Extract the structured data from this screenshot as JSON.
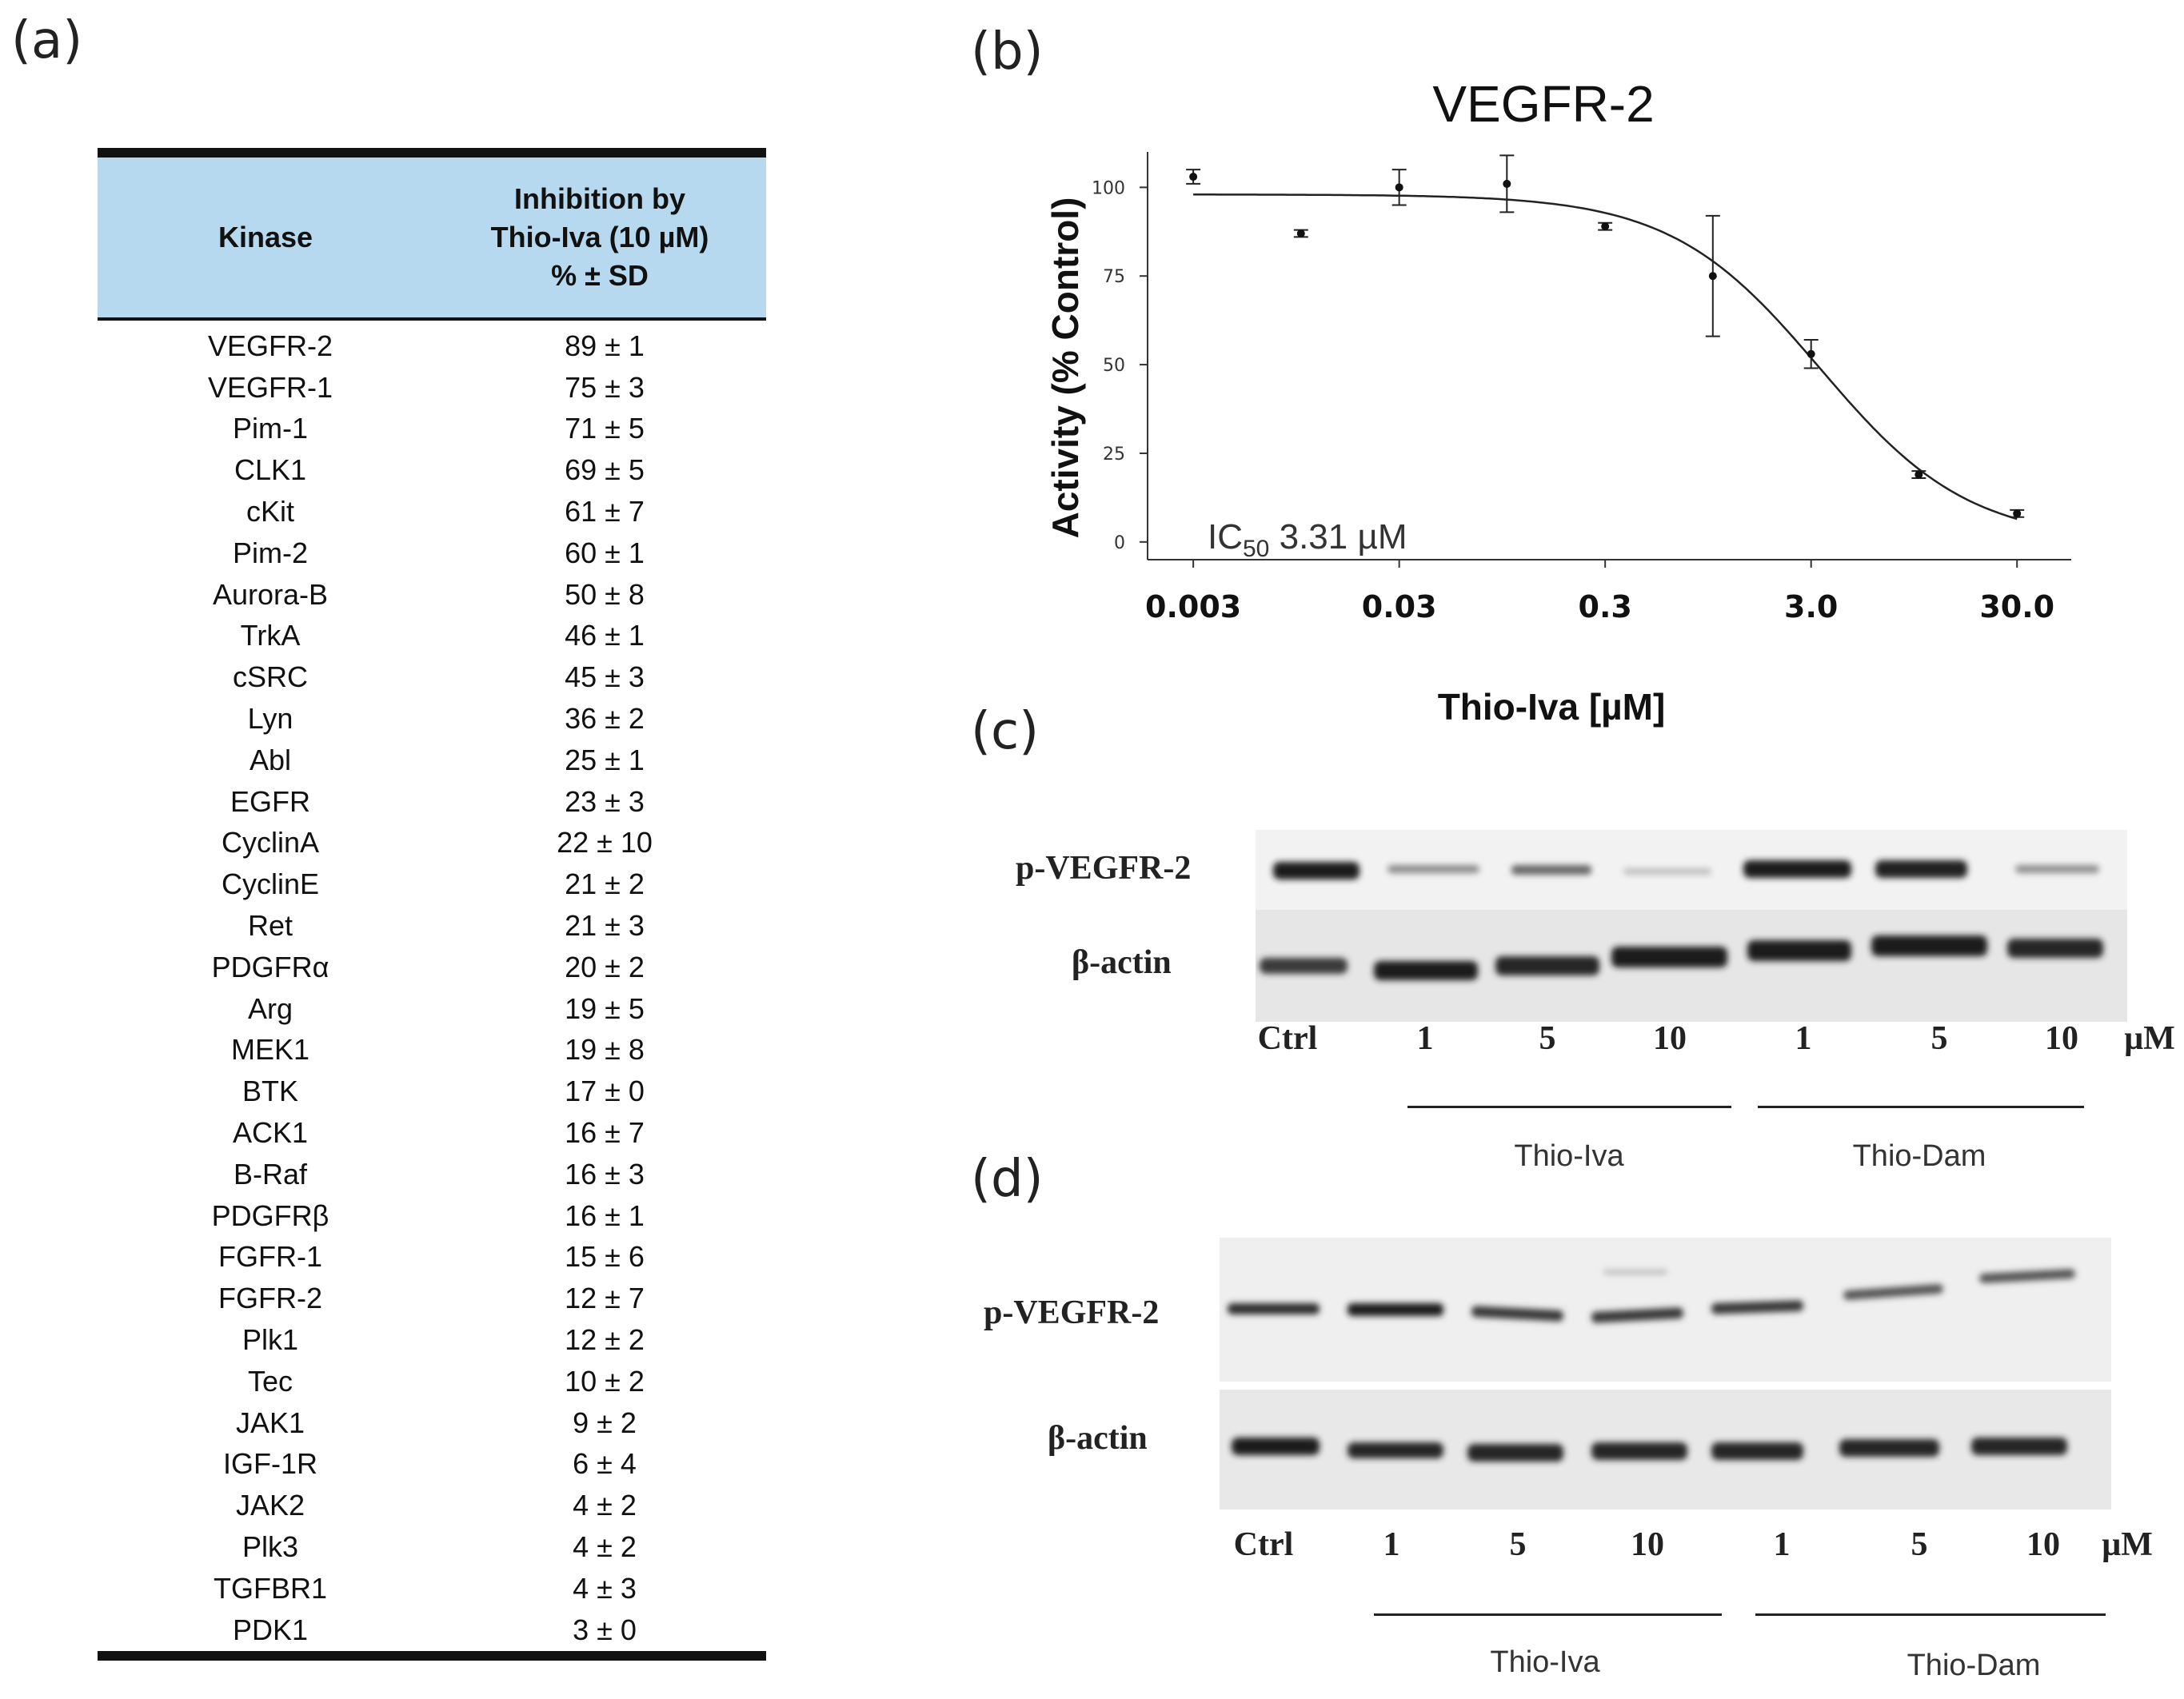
{
  "panels": {
    "a": "(a)",
    "b": "(b)",
    "c": "(c)",
    "d": "(d)"
  },
  "table": {
    "header_kinase": "Kinase",
    "header_inhibition": [
      "Inhibition by",
      "Thio-Iva (10 µM)",
      "% ± SD"
    ],
    "rows": [
      {
        "kinase": "VEGFR-2",
        "value": "89 ± 1"
      },
      {
        "kinase": "VEGFR-1",
        "value": "75 ± 3"
      },
      {
        "kinase": "Pim-1",
        "value": "71 ± 5"
      },
      {
        "kinase": "CLK1",
        "value": "69 ± 5"
      },
      {
        "kinase": "cKit",
        "value": "61 ± 7"
      },
      {
        "kinase": "Pim-2",
        "value": "60 ± 1"
      },
      {
        "kinase": "Aurora-B",
        "value": "50 ± 8"
      },
      {
        "kinase": "TrkA",
        "value": "46 ± 1"
      },
      {
        "kinase": "cSRC",
        "value": "45 ± 3"
      },
      {
        "kinase": "Lyn",
        "value": "36 ± 2"
      },
      {
        "kinase": "Abl",
        "value": "25 ± 1"
      },
      {
        "kinase": "EGFR",
        "value": "23 ± 3"
      },
      {
        "kinase": "CyclinA",
        "value": "22 ± 10"
      },
      {
        "kinase": "CyclinE",
        "value": "21 ± 2"
      },
      {
        "kinase": "Ret",
        "value": "21 ± 3"
      },
      {
        "kinase": "PDGFRα",
        "value": "20 ± 2"
      },
      {
        "kinase": "Arg",
        "value": "19 ± 5"
      },
      {
        "kinase": "MEK1",
        "value": "19 ± 8"
      },
      {
        "kinase": "BTK",
        "value": "17 ± 0"
      },
      {
        "kinase": "ACK1",
        "value": "16 ± 7"
      },
      {
        "kinase": "B-Raf",
        "value": "16 ± 3"
      },
      {
        "kinase": "PDGFRβ",
        "value": "16 ± 1"
      },
      {
        "kinase": "FGFR-1",
        "value": "15 ± 6"
      },
      {
        "kinase": "FGFR-2",
        "value": "12 ± 7"
      },
      {
        "kinase": "Plk1",
        "value": "12 ± 2"
      },
      {
        "kinase": "Tec",
        "value": "10 ± 2"
      },
      {
        "kinase": "JAK1",
        "value": "9 ± 2"
      },
      {
        "kinase": "IGF-1R",
        "value": "6 ± 4"
      },
      {
        "kinase": "JAK2",
        "value": "4 ± 2"
      },
      {
        "kinase": "Plk3",
        "value": "4 ± 2"
      },
      {
        "kinase": "TGFBR1",
        "value": "4 ± 3"
      },
      {
        "kinase": "PDK1",
        "value": "3 ± 0"
      }
    ]
  },
  "chart_data": {
    "type": "scatter",
    "title": "VEGFR-2",
    "xlabel": "Thio-Iva [µM]",
    "ylabel": "Activity (% Control)",
    "x_scale": "log",
    "x_ticks": [
      0.003,
      0.03,
      0.3,
      3.0,
      30.0
    ],
    "x_tick_labels": [
      "0.003",
      "0.03",
      "0.3",
      "3.0",
      "30.0"
    ],
    "y_ticks": [
      0,
      25,
      50,
      75,
      100
    ],
    "ylim": [
      -5,
      110
    ],
    "xlim": [
      0.0018,
      55
    ],
    "annotation": "IC50 3.31 µM",
    "ic50": 3.31,
    "points": [
      {
        "x": 0.003,
        "y": 103,
        "err": 2
      },
      {
        "x": 0.01,
        "y": 87,
        "err": 1
      },
      {
        "x": 0.03,
        "y": 100,
        "err": 5
      },
      {
        "x": 0.1,
        "y": 101,
        "err": 8
      },
      {
        "x": 0.3,
        "y": 89,
        "err": 1
      },
      {
        "x": 1.0,
        "y": 75,
        "err": 17
      },
      {
        "x": 3.0,
        "y": 53,
        "err": 4
      },
      {
        "x": 10.0,
        "y": 19,
        "err": 1
      },
      {
        "x": 30.0,
        "y": 8,
        "err": 1
      }
    ],
    "fit": {
      "top": 98,
      "bottom": 0,
      "ic50": 3.31,
      "hill": 1.2
    }
  },
  "blot_c": {
    "rows": [
      "p-VEGFR-2",
      "β-actin"
    ],
    "lanes": [
      "Ctrl",
      "1",
      "5",
      "10",
      "1",
      "5",
      "10",
      "µM"
    ],
    "groups": [
      "Thio-Iva",
      "Thio-Dam"
    ]
  },
  "blot_d": {
    "rows": [
      "p-VEGFR-2",
      "β-actin"
    ],
    "lanes": [
      "Ctrl",
      "1",
      "5",
      "10",
      "1",
      "5",
      "10",
      "µM"
    ],
    "groups": [
      "Thio-Iva",
      "Thio-Dam"
    ]
  }
}
